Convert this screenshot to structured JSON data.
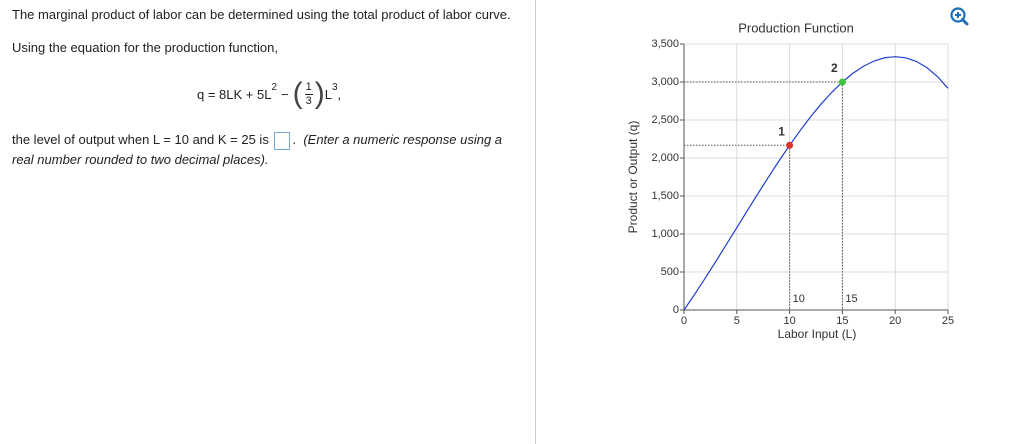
{
  "question": {
    "intro": "The marginal product of labor can be determined using the total product of labor curve.",
    "lead": "Using the equation for the production function,",
    "equation": {
      "lhs": "q = 8LK + 5L",
      "exp1": "2",
      "minus": "−",
      "num": "1",
      "den": "3",
      "var": "L",
      "exp2": "3",
      "end": ","
    },
    "prompt": "the level of output when L = 10 and K = 25 is",
    "after_box": ".",
    "instruction": "(Enter a numeric response using a real number rounded to two decimal places)."
  },
  "chart_data": {
    "type": "line",
    "title": "Production Function",
    "xlabel": "Labor Input (L)",
    "ylabel": "Product or Output (q)",
    "x": [
      0,
      1,
      2,
      3,
      4,
      5,
      6,
      7,
      8,
      9,
      10,
      11,
      12,
      13,
      14,
      15,
      16,
      17,
      18,
      19,
      20,
      21,
      22,
      23,
      24,
      25
    ],
    "values": [
      0,
      205,
      417,
      636,
      859,
      1083,
      1308,
      1531,
      1749,
      1962,
      2167,
      2361,
      2544,
      2713,
      2865,
      3000,
      3115,
      3207,
      3276,
      3319,
      3333,
      3318,
      3271,
      3189,
      3072,
      2917
    ],
    "color": "#1f3fd0",
    "points": [
      {
        "label": "1",
        "x": 10,
        "y": 2167,
        "color": "#e0312b"
      },
      {
        "label": "2",
        "x": 15,
        "y": 3000,
        "color": "#3cc43c"
      }
    ],
    "xlim": [
      0,
      25
    ],
    "xticks": [
      0,
      5,
      10,
      15,
      20,
      25
    ],
    "ylim": [
      0,
      3500
    ],
    "yticks": [
      0,
      500,
      {
        "value": 1000,
        "label": "1,000"
      },
      {
        "value": 1500,
        "label": "1,500"
      },
      {
        "value": 2000,
        "label": "2,000"
      },
      {
        "value": 2500,
        "label": "2,500"
      },
      {
        "value": 3000,
        "label": "3,000"
      },
      {
        "value": 3500,
        "label": "3,500"
      }
    ],
    "grid": true
  }
}
